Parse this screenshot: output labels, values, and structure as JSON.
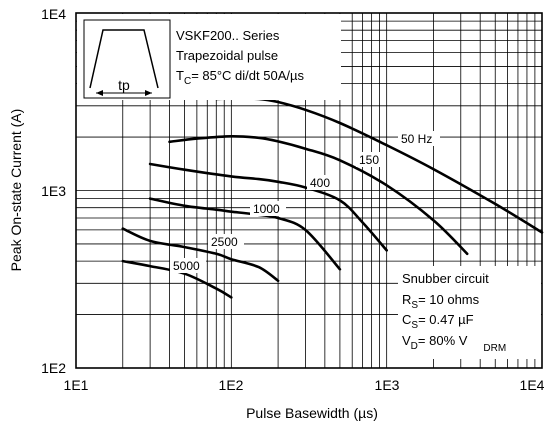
{
  "chart_data": {
    "type": "line",
    "title": "",
    "xlabel": "Pulse Basewidth (µs)",
    "ylabel": "Peak On-state Current (A)",
    "xscale": "log",
    "yscale": "log",
    "xlim": [
      10,
      10000
    ],
    "ylim": [
      100,
      10000
    ],
    "grid": true,
    "x_tick_labels": [
      "1E1",
      "1E2",
      "1E3",
      "1E4"
    ],
    "y_tick_labels": [
      "1E4",
      "1E3",
      "1E2"
    ],
    "series": [
      {
        "name": "50 Hz",
        "points": [
          [
            80,
            3280
          ],
          [
            100,
            3300
          ],
          [
            150,
            3280
          ],
          [
            200,
            3150
          ],
          [
            300,
            2850
          ],
          [
            500,
            2400
          ],
          [
            1000,
            1800
          ],
          [
            2000,
            1320
          ],
          [
            5000,
            840
          ],
          [
            10000,
            580
          ]
        ]
      },
      {
        "name": "150",
        "points": [
          [
            40,
            1880
          ],
          [
            60,
            1960
          ],
          [
            100,
            2020
          ],
          [
            150,
            1980
          ],
          [
            200,
            1890
          ],
          [
            300,
            1720
          ],
          [
            500,
            1480
          ],
          [
            1000,
            1070
          ],
          [
            2000,
            680
          ],
          [
            3300,
            440
          ]
        ]
      },
      {
        "name": "400",
        "points": [
          [
            30,
            1410
          ],
          [
            50,
            1310
          ],
          [
            100,
            1200
          ],
          [
            150,
            1160
          ],
          [
            200,
            1120
          ],
          [
            300,
            1040
          ],
          [
            500,
            880
          ],
          [
            700,
            660
          ],
          [
            1000,
            460
          ]
        ]
      },
      {
        "name": "1000",
        "points": [
          [
            30,
            900
          ],
          [
            50,
            820
          ],
          [
            80,
            780
          ],
          [
            100,
            760
          ],
          [
            150,
            730
          ],
          [
            200,
            700
          ],
          [
            300,
            600
          ],
          [
            500,
            360
          ]
        ]
      },
      {
        "name": "2500",
        "points": [
          [
            20,
            610
          ],
          [
            30,
            520
          ],
          [
            50,
            480
          ],
          [
            80,
            440
          ],
          [
            100,
            410
          ],
          [
            150,
            370
          ],
          [
            200,
            310
          ]
        ]
      },
      {
        "name": "5000",
        "points": [
          [
            20,
            400
          ],
          [
            30,
            375
          ],
          [
            50,
            340
          ],
          [
            80,
            280
          ],
          [
            100,
            250
          ]
        ]
      }
    ],
    "annotations": {
      "series_info": [
        "VSKF200.. Series",
        "Trapezoidal pulse"
      ],
      "tc_prefix": "T",
      "tc_sub": "C",
      "tc_text": "= 85°C di/dt 50A/µs",
      "pulse_label": "tp",
      "snubber_title": "Snubber circuit",
      "rs_prefix": "R",
      "rs_sub": "S",
      "rs_text": "= 10 ohms",
      "cs_prefix": "C",
      "cs_sub": "S",
      "cs_text": "= 0.47 µF",
      "vd_prefix": "V",
      "vd_sub": "D",
      "vd_text": "= 80% V",
      "vd_sub2": "DRM"
    }
  }
}
